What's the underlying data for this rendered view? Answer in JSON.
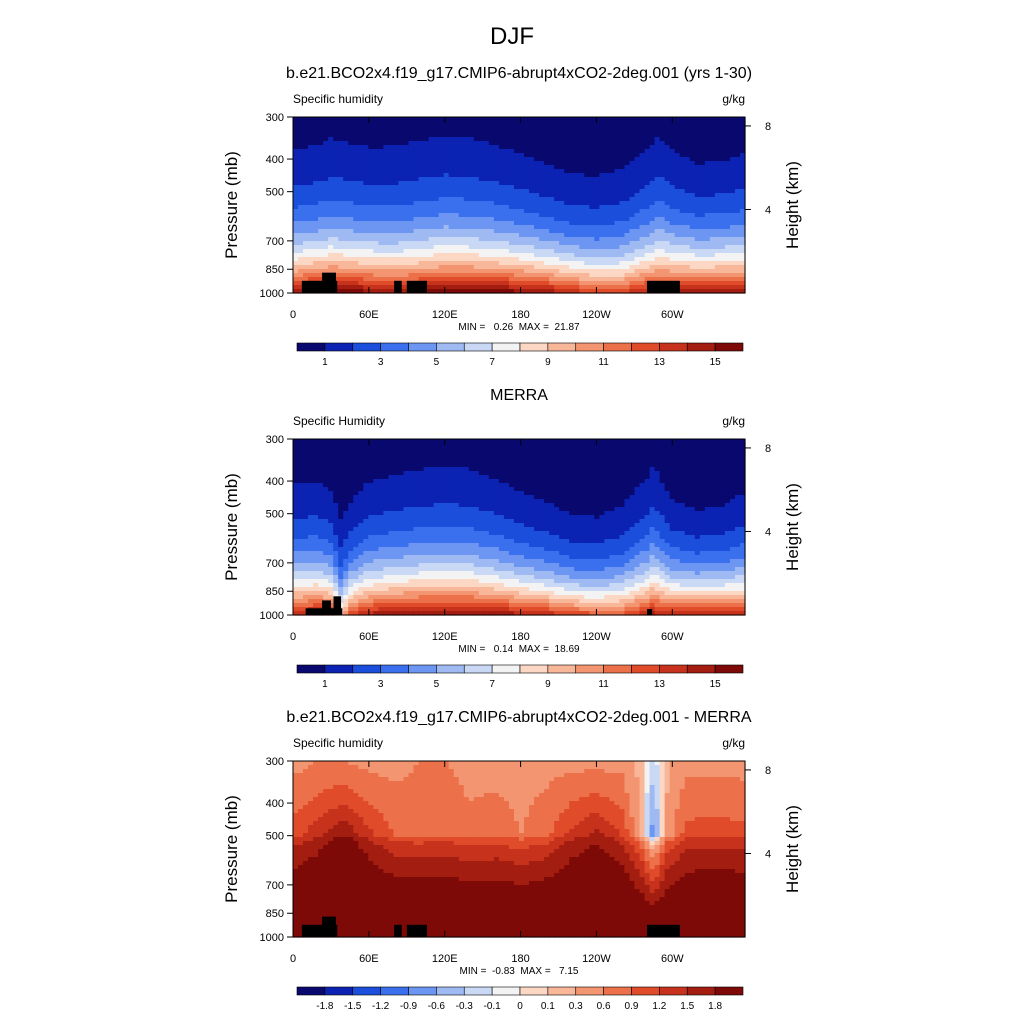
{
  "figure": {
    "title": "DJF"
  },
  "chart_data": [
    {
      "type": "heatmap",
      "title": "b.e21.BCO2x4.f19_g17.CMIP6-abrupt4xCO2-2deg.001 (yrs 1-30)",
      "left_label": "Specific humidity",
      "units": "g/kg",
      "ylabel": "Pressure (mb)",
      "ylabel_right": "Height (km)",
      "x_ticks": [
        "0",
        "60E",
        "120E",
        "180",
        "120W",
        "60W"
      ],
      "x_tick_values": [
        0,
        60,
        120,
        180,
        240,
        300
      ],
      "xlim": [
        0,
        357.5
      ],
      "y_ticks": [
        "300",
        "400",
        "500",
        "700",
        "850",
        "1000"
      ],
      "y_tick_values": [
        300,
        400,
        500,
        700,
        850,
        1000
      ],
      "ylim": [
        1000,
        300
      ],
      "height_ticks": [
        "8",
        "4"
      ],
      "height_tick_values": [
        8,
        4
      ],
      "min_max_text": "MIN =   0.26  MAX =  21.87",
      "colorbar_labels": [
        "1",
        "3",
        "5",
        "7",
        "9",
        "11",
        "13",
        "15"
      ],
      "colorbar_label_values": [
        1,
        3,
        5,
        7,
        9,
        11,
        13,
        15
      ],
      "colorbar_levels": [
        0,
        1,
        2,
        3,
        4,
        5,
        6,
        7,
        8,
        9,
        10,
        11,
        12,
        13,
        14,
        15,
        16
      ],
      "colorbar_colors": [
        "#08086e",
        "#0b22b3",
        "#1b4fdb",
        "#3a70ee",
        "#6c96f2",
        "#9fbaf2",
        "#c9d9f5",
        "#f3f3f3",
        "#fbd7c4",
        "#f9b79a",
        "#f39571",
        "#ec7049",
        "#e04b2a",
        "#c6321b",
        "#a31d10",
        "#7e0a08"
      ],
      "profile": {
        "lon": [
          0,
          20,
          30,
          40,
          60,
          80,
          100,
          120,
          140,
          160,
          180,
          200,
          220,
          240,
          260,
          280,
          290,
          300,
          320,
          340,
          357.5
        ],
        "q1000": [
          15,
          16,
          16,
          16,
          15.5,
          15,
          15.5,
          16,
          16,
          16,
          15.5,
          15,
          14,
          13,
          13,
          14.5,
          15,
          15,
          15.5,
          15.5,
          15
        ],
        "q500": [
          2.2,
          2.4,
          2.6,
          2.5,
          2.3,
          2.3,
          2.5,
          2.7,
          2.6,
          2.4,
          2.1,
          1.8,
          1.5,
          1.4,
          1.6,
          2.2,
          2.6,
          2.2,
          1.8,
          1.9,
          2.1
        ]
      },
      "masks": [
        {
          "lon": [
            7,
            35
          ],
          "p_top": 920
        },
        {
          "lon": [
            23,
            34
          ],
          "p_top": 870
        },
        {
          "lon": [
            80,
            86
          ],
          "p_top": 920
        },
        {
          "lon": [
            90,
            106
          ],
          "p_top": 920
        },
        {
          "lon": [
            280,
            306
          ],
          "p_top": 920
        }
      ]
    },
    {
      "type": "heatmap",
      "title": "MERRA",
      "left_label": "Specific Humidity",
      "units": "g/kg",
      "ylabel": "Pressure (mb)",
      "ylabel_right": "Height (km)",
      "x_ticks": [
        "0",
        "60E",
        "120E",
        "180",
        "120W",
        "60W"
      ],
      "x_tick_values": [
        0,
        60,
        120,
        180,
        240,
        300
      ],
      "xlim": [
        0,
        357.5
      ],
      "y_ticks": [
        "300",
        "400",
        "500",
        "700",
        "850",
        "1000"
      ],
      "y_tick_values": [
        300,
        400,
        500,
        700,
        850,
        1000
      ],
      "ylim": [
        1000,
        300
      ],
      "height_ticks": [
        "8",
        "4"
      ],
      "height_tick_values": [
        8,
        4
      ],
      "min_max_text": "MIN =   0.14  MAX =  18.69",
      "colorbar_labels": [
        "1",
        "3",
        "5",
        "7",
        "9",
        "11",
        "13",
        "15"
      ],
      "colorbar_label_values": [
        1,
        3,
        5,
        7,
        9,
        11,
        13,
        15
      ],
      "colorbar_levels": [
        0,
        1,
        2,
        3,
        4,
        5,
        6,
        7,
        8,
        9,
        10,
        11,
        12,
        13,
        14,
        15,
        16
      ],
      "colorbar_colors": [
        "#08086e",
        "#0b22b3",
        "#1b4fdb",
        "#3a70ee",
        "#6c96f2",
        "#9fbaf2",
        "#c9d9f5",
        "#f3f3f3",
        "#fbd7c4",
        "#f9b79a",
        "#f39571",
        "#ec7049",
        "#e04b2a",
        "#c6321b",
        "#a31d10",
        "#7e0a08"
      ],
      "profile": {
        "lon": [
          0,
          20,
          30,
          38,
          45,
          60,
          80,
          100,
          120,
          140,
          160,
          180,
          200,
          220,
          240,
          260,
          280,
          285,
          290,
          300,
          320,
          340,
          357.5
        ],
        "q1000": [
          14,
          15,
          14,
          9,
          13,
          14.5,
          15,
          15.5,
          15.5,
          15.5,
          15,
          14.5,
          14,
          13,
          12.5,
          12.5,
          14,
          15,
          14,
          14,
          14.5,
          14.5,
          14
        ],
        "q500": [
          1.8,
          1.9,
          1.6,
          0.9,
          1.3,
          1.9,
          2.1,
          2.3,
          2.4,
          2.3,
          2.0,
          1.6,
          1.3,
          1.0,
          0.9,
          1.2,
          2.0,
          2.4,
          2.0,
          1.4,
          1.1,
          1.2,
          1.6
        ]
      },
      "masks": [
        {
          "lon": [
            10,
            39
          ],
          "p_top": 955
        },
        {
          "lon": [
            23,
            30
          ],
          "p_top": 905
        },
        {
          "lon": [
            32,
            38
          ],
          "p_top": 880
        },
        {
          "lon": [
            280,
            284
          ],
          "p_top": 960
        }
      ]
    },
    {
      "type": "heatmap",
      "title": "b.e21.BCO2x4.f19_g17.CMIP6-abrupt4xCO2-2deg.001 - MERRA",
      "left_label": "Specific humidity",
      "units": "g/kg",
      "ylabel": "Pressure (mb)",
      "ylabel_right": "Height (km)",
      "x_ticks": [
        "0",
        "60E",
        "120E",
        "180",
        "120W",
        "60W"
      ],
      "x_tick_values": [
        0,
        60,
        120,
        180,
        240,
        300
      ],
      "xlim": [
        0,
        357.5
      ],
      "y_ticks": [
        "300",
        "400",
        "500",
        "700",
        "850",
        "1000"
      ],
      "y_tick_values": [
        300,
        400,
        500,
        700,
        850,
        1000
      ],
      "ylim": [
        1000,
        300
      ],
      "height_ticks": [
        "8",
        "4"
      ],
      "height_tick_values": [
        8,
        4
      ],
      "min_max_text": "MIN =  -0.83  MAX =   7.15",
      "colorbar_labels": [
        "-1.8",
        "-1.5",
        "-1.2",
        "-0.9",
        "-0.6",
        "-0.3",
        "-0.1",
        "0",
        "0.1",
        "0.3",
        "0.6",
        "0.9",
        "1.2",
        "1.5",
        "1.8"
      ],
      "colorbar_label_values": [
        -1.8,
        -1.5,
        -1.2,
        -0.9,
        -0.6,
        -0.3,
        -0.1,
        0,
        0.1,
        0.3,
        0.6,
        0.9,
        1.2,
        1.5,
        1.8
      ],
      "colorbar_levels": [
        -2.1,
        -1.8,
        -1.5,
        -1.2,
        -0.9,
        -0.6,
        -0.3,
        -0.1,
        0,
        0.1,
        0.3,
        0.6,
        0.9,
        1.2,
        1.5,
        1.8,
        2.1
      ],
      "colorbar_colors": [
        "#08086e",
        "#0b22b3",
        "#1b4fdb",
        "#3a70ee",
        "#6c96f2",
        "#9fbaf2",
        "#c9d9f5",
        "#f3f3f3",
        "#fbd7c4",
        "#f9b79a",
        "#f39571",
        "#ec7049",
        "#e04b2a",
        "#c6321b",
        "#a31d10",
        "#7e0a08"
      ],
      "profile": {
        "lon": [
          0,
          20,
          40,
          60,
          80,
          100,
          120,
          140,
          160,
          180,
          200,
          220,
          240,
          260,
          275,
          285,
          295,
          310,
          330,
          357.5
        ],
        "q1000": [
          2.5,
          2.5,
          3.0,
          2.5,
          2.5,
          2.5,
          2.5,
          2.5,
          2.5,
          2.5,
          2.5,
          2.5,
          2.5,
          2.5,
          2.5,
          2.5,
          2.5,
          2.5,
          2.5,
          2.5
        ],
        "q500": [
          1.1,
          1.4,
          1.8,
          1.3,
          0.9,
          0.8,
          0.9,
          0.7,
          0.8,
          0.6,
          0.8,
          1.3,
          1.6,
          1.2,
          0.3,
          -0.8,
          0.4,
          1.0,
          1.1,
          1.0
        ],
        "q300": [
          0.5,
          0.6,
          0.6,
          0.5,
          0.5,
          0.6,
          0.6,
          0.5,
          0.5,
          0.5,
          0.5,
          0.5,
          0.5,
          0.5,
          0.2,
          -0.2,
          0.2,
          0.5,
          0.5,
          0.5
        ]
      },
      "masks": [
        {
          "lon": [
            7,
            35
          ],
          "p_top": 920
        },
        {
          "lon": [
            23,
            34
          ],
          "p_top": 870
        },
        {
          "lon": [
            80,
            86
          ],
          "p_top": 920
        },
        {
          "lon": [
            90,
            106
          ],
          "p_top": 920
        },
        {
          "lon": [
            280,
            306
          ],
          "p_top": 920
        }
      ]
    }
  ]
}
